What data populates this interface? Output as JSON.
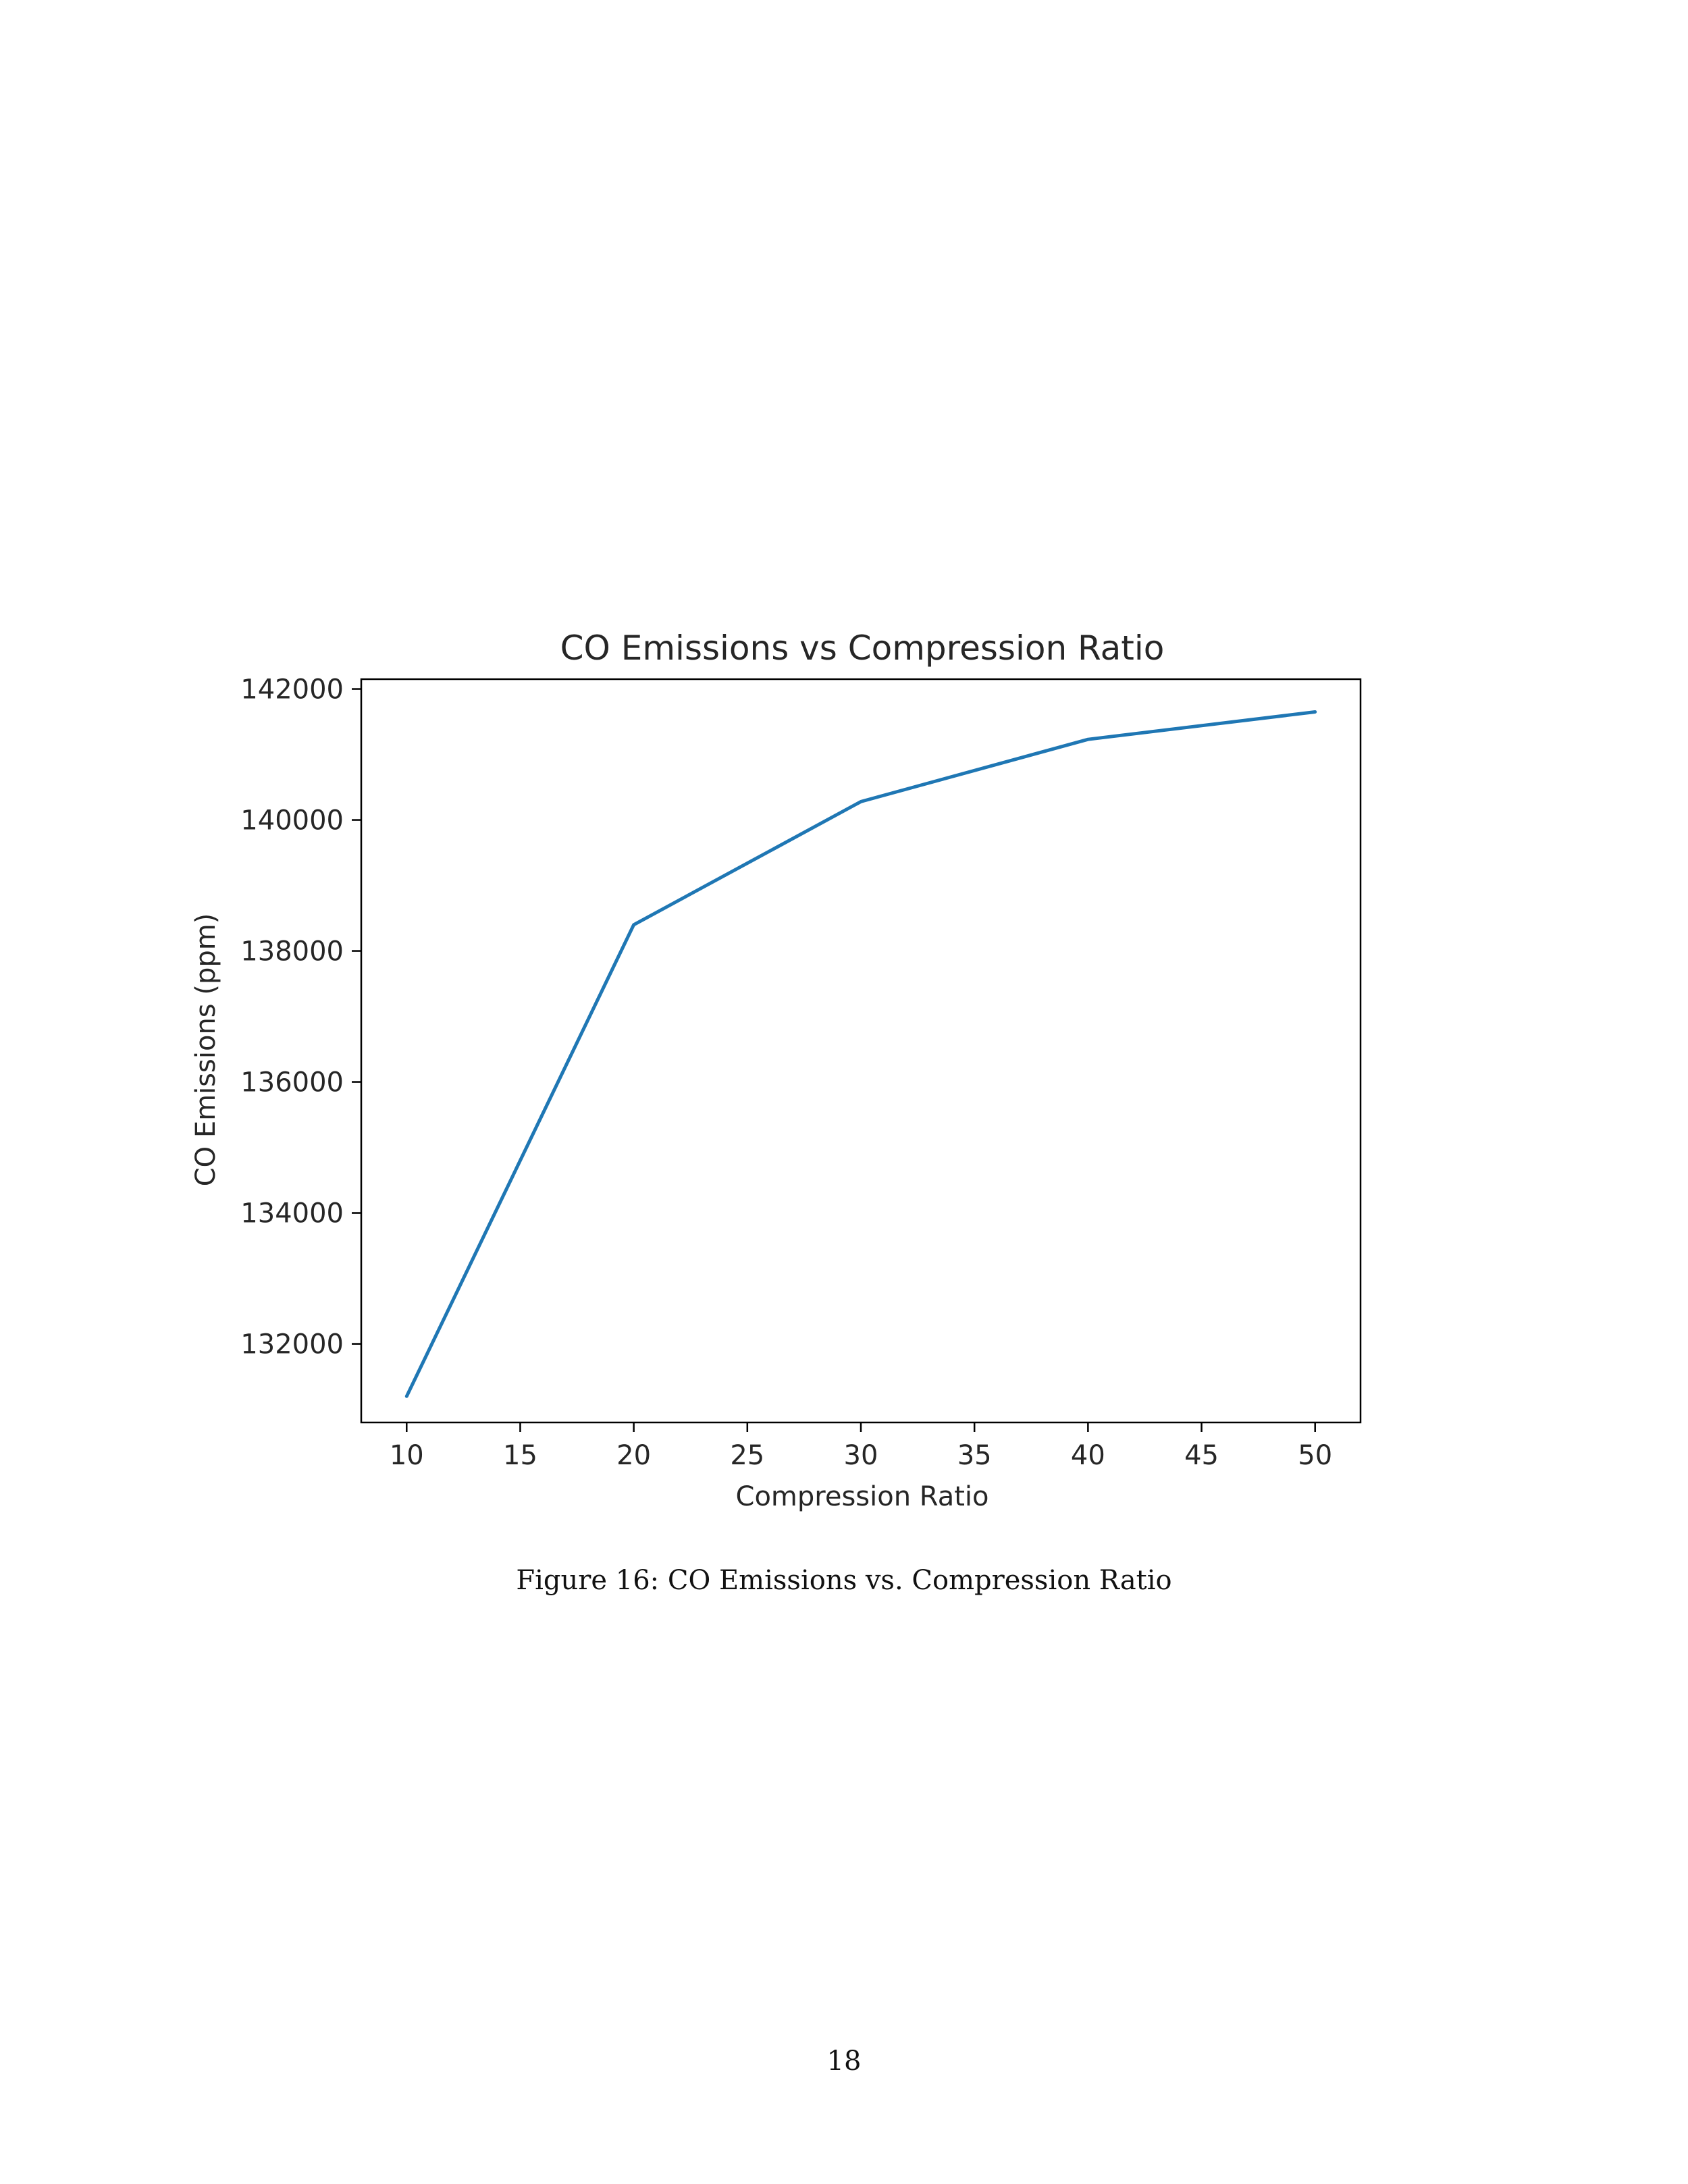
{
  "page": {
    "caption": "Figure 16: CO Emissions vs. Compression Ratio",
    "page_number": "18"
  },
  "chart_data": {
    "type": "line",
    "title": "CO Emissions vs Compression Ratio",
    "xlabel": "Compression Ratio",
    "ylabel": "CO Emissions (ppm)",
    "x": [
      10,
      20,
      30,
      40,
      50
    ],
    "series": [
      {
        "values": [
          131200,
          138400,
          140280,
          141230,
          141650
        ],
        "color": "#1f77b4"
      }
    ],
    "xlim": [
      8,
      52
    ],
    "ylim": [
      130800,
      142150
    ],
    "xticks": [
      10,
      15,
      20,
      25,
      30,
      35,
      40,
      45,
      50
    ],
    "yticks": [
      132000,
      134000,
      136000,
      138000,
      140000,
      142000
    ],
    "grid": false,
    "legend": "none"
  }
}
